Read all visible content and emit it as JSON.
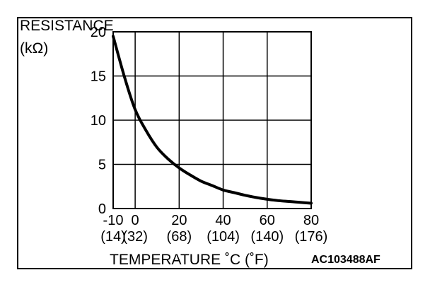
{
  "chart_data": {
    "type": "line",
    "title": "",
    "ylabel_line1": "RESISTANCE",
    "ylabel_line2": "(kΩ)",
    "xlabel": "TEMPERATURE ˚C (˚F)",
    "figure_code": "AC103488AF",
    "xlim": [
      -10,
      80
    ],
    "ylim": [
      0,
      20
    ],
    "x_ticks": [
      -10,
      0,
      20,
      40,
      60,
      80
    ],
    "x_tick_labels": [
      "-10",
      "0",
      "20",
      "40",
      "60",
      "80"
    ],
    "x_tick_labels_f": [
      "(14)",
      "(32)",
      "(68)",
      "(104)",
      "(140)",
      "(176)"
    ],
    "y_ticks": [
      0,
      5,
      10,
      15,
      20
    ],
    "y_tick_labels": [
      "0",
      "5",
      "10",
      "15",
      "20"
    ],
    "grid": true,
    "series": [
      {
        "x": [
          -10,
          -5,
          0,
          5,
          10,
          15,
          20,
          25,
          30,
          35,
          40,
          45,
          50,
          55,
          60,
          65,
          70,
          75,
          80
        ],
        "values": [
          19.5,
          15.0,
          11.2,
          8.8,
          6.9,
          5.6,
          4.6,
          3.8,
          3.1,
          2.6,
          2.1,
          1.8,
          1.5,
          1.25,
          1.05,
          0.9,
          0.8,
          0.7,
          0.6
        ]
      }
    ]
  }
}
